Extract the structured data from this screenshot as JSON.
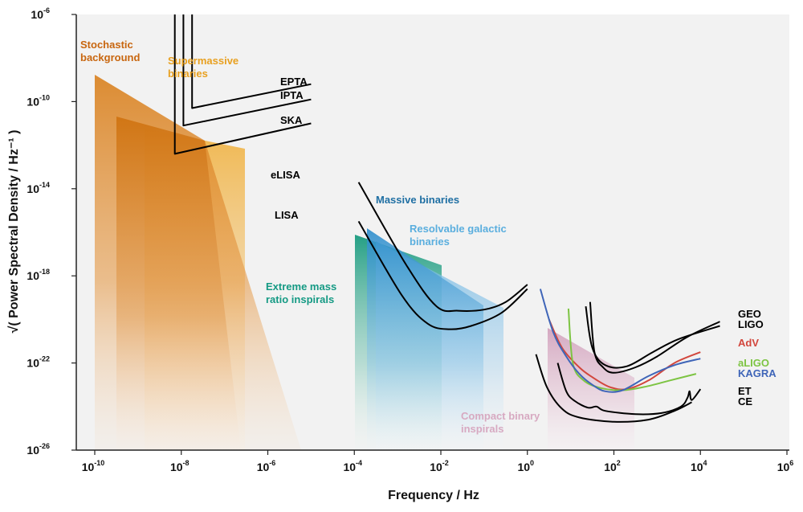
{
  "chart_data": {
    "type": "line",
    "xlabel": "Frequency / Hz",
    "ylabel": "√( Power Spectral Density / Hz⁻¹ )",
    "x_scale": "log",
    "y_scale": "log",
    "xlim_exp": [
      -10,
      6
    ],
    "ylim_exp": [
      -26,
      -6
    ],
    "x_ticks": [
      {
        "base": "10",
        "exp": "-10",
        "e": -10
      },
      {
        "base": "10",
        "exp": "-8",
        "e": -8
      },
      {
        "base": "10",
        "exp": "-6",
        "e": -6
      },
      {
        "base": "10",
        "exp": "-4",
        "e": -4
      },
      {
        "base": "10",
        "exp": "-2",
        "e": -2
      },
      {
        "base": "10",
        "exp": "0",
        "e": 0
      },
      {
        "base": "10",
        "exp": "2",
        "e": 2
      },
      {
        "base": "10",
        "exp": "4",
        "e": 4
      },
      {
        "base": "10",
        "exp": "6",
        "e": 6
      }
    ],
    "y_ticks": [
      {
        "base": "10",
        "exp": "-6",
        "e": -6
      },
      {
        "base": "10",
        "exp": "-10",
        "e": -10
      },
      {
        "base": "10",
        "exp": "-14",
        "e": -14
      },
      {
        "base": "10",
        "exp": "-18",
        "e": -18
      },
      {
        "base": "10",
        "exp": "-22",
        "e": -22
      },
      {
        "base": "10",
        "exp": "-26",
        "e": -26
      }
    ],
    "sources": [
      {
        "id": "stochastic",
        "label": [
          "Stochastic",
          "background"
        ],
        "color": "#c8660f"
      },
      {
        "id": "supermassive",
        "label": [
          "Supermassive",
          "binaries"
        ],
        "color": "#e8a020"
      },
      {
        "id": "massive",
        "label": [
          "Massive binaries"
        ],
        "color": "#1f6fa3"
      },
      {
        "id": "galactic",
        "label": [
          "Resolvable galactic",
          "binaries"
        ],
        "color": "#5aaede"
      },
      {
        "id": "emri",
        "label": [
          "Extreme mass",
          "ratio inspirals"
        ],
        "color": "#159a84"
      },
      {
        "id": "compact",
        "label": [
          "Compact binary",
          "inspirals"
        ],
        "color": "#d7a9c1"
      }
    ],
    "detectors": [
      {
        "name": "EPTA",
        "color": "#000000",
        "points": [
          [
            -7.75,
            -6
          ],
          [
            -7.75,
            -10.3
          ],
          [
            -5,
            -9.2
          ]
        ]
      },
      {
        "name": "IPTA",
        "color": "#000000",
        "points": [
          [
            -7.95,
            -6
          ],
          [
            -7.95,
            -11.1
          ],
          [
            -5,
            -9.9
          ]
        ]
      },
      {
        "name": "SKA",
        "color": "#000000",
        "points": [
          [
            -8.15,
            -6
          ],
          [
            -8.15,
            -12.4
          ],
          [
            -5,
            -11
          ]
        ]
      },
      {
        "name": "eLISA",
        "color": "#000000",
        "points": [
          [
            -3.9,
            -13.7
          ],
          [
            -2.8,
            -17.5
          ],
          [
            -2.1,
            -19.4
          ],
          [
            -1.6,
            -19.6
          ],
          [
            -1,
            -19.55
          ],
          [
            -0.5,
            -19.2
          ],
          [
            0,
            -18.4
          ]
        ]
      },
      {
        "name": "LISA",
        "color": "#000000",
        "points": [
          [
            -3.9,
            -15.5
          ],
          [
            -2.9,
            -18.9
          ],
          [
            -2.3,
            -20.2
          ],
          [
            -1.8,
            -20.45
          ],
          [
            -1.3,
            -20.3
          ],
          [
            -0.6,
            -19.7
          ],
          [
            0,
            -18.6
          ]
        ]
      },
      {
        "name": "GEO",
        "color": "#000000",
        "points": [
          [
            1.45,
            -19.2
          ],
          [
            1.55,
            -21.5
          ],
          [
            1.75,
            -22.2
          ],
          [
            2,
            -22.45
          ],
          [
            2.5,
            -22.2
          ],
          [
            3,
            -21.7
          ],
          [
            3.7,
            -20.8
          ],
          [
            4.45,
            -20.1
          ]
        ]
      },
      {
        "name": "LIGO",
        "color": "#000000",
        "points": [
          [
            1.35,
            -19.4
          ],
          [
            1.5,
            -21.3
          ],
          [
            1.8,
            -22.1
          ],
          [
            2.3,
            -22.15
          ],
          [
            2.9,
            -21.5
          ],
          [
            3.5,
            -20.9
          ],
          [
            4.45,
            -20.3
          ]
        ]
      },
      {
        "name": "AdV",
        "color": "#d2473d",
        "points": [
          [
            0.5,
            -20
          ],
          [
            0.8,
            -21.3
          ],
          [
            1.2,
            -22.2
          ],
          [
            1.5,
            -22.65
          ],
          [
            1.9,
            -23.1
          ],
          [
            2.3,
            -23.2
          ],
          [
            2.8,
            -22.8
          ],
          [
            3.4,
            -22
          ],
          [
            4,
            -21.5
          ]
        ]
      },
      {
        "name": "aLIGO",
        "color": "#7dc443",
        "points": [
          [
            0.95,
            -19.5
          ],
          [
            1.05,
            -22
          ],
          [
            1.3,
            -22.8
          ],
          [
            1.7,
            -23.15
          ],
          [
            2.2,
            -23.25
          ],
          [
            2.7,
            -23.1
          ],
          [
            3.3,
            -22.8
          ],
          [
            3.9,
            -22.5
          ]
        ]
      },
      {
        "name": "KAGRA",
        "color": "#3f65b8",
        "points": [
          [
            0.3,
            -18.6
          ],
          [
            0.6,
            -20.6
          ],
          [
            0.9,
            -21.7
          ],
          [
            1.2,
            -22.5
          ],
          [
            1.5,
            -23
          ],
          [
            1.8,
            -23.3
          ],
          [
            2.2,
            -23.25
          ],
          [
            2.8,
            -22.6
          ],
          [
            3.4,
            -22.1
          ],
          [
            4,
            -21.8
          ]
        ]
      },
      {
        "name": "ET",
        "color": "#000000",
        "points": [
          [
            0.7,
            -22
          ],
          [
            0.9,
            -23.3
          ],
          [
            1.1,
            -23.75
          ],
          [
            1.4,
            -24.05
          ],
          [
            1.6,
            -24
          ],
          [
            1.8,
            -24.2
          ],
          [
            2.5,
            -24.35
          ],
          [
            3.1,
            -24.3
          ],
          [
            3.55,
            -24
          ],
          [
            3.7,
            -23.6
          ],
          [
            3.75,
            -23.3
          ],
          [
            3.8,
            -23.7
          ],
          [
            4,
            -23.2
          ]
        ]
      },
      {
        "name": "CE",
        "color": "#000000",
        "points": [
          [
            0.2,
            -21.6
          ],
          [
            0.45,
            -23.1
          ],
          [
            0.8,
            -24.1
          ],
          [
            1.2,
            -24.5
          ],
          [
            2,
            -24.7
          ],
          [
            2.8,
            -24.6
          ],
          [
            3.4,
            -24.2
          ],
          [
            3.8,
            -23.8
          ]
        ]
      }
    ]
  }
}
